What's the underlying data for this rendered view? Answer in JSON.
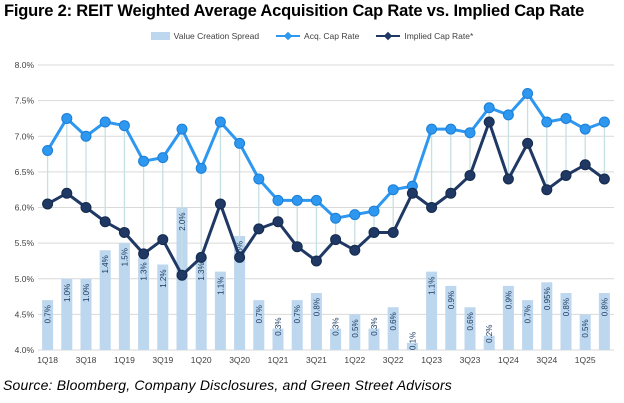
{
  "figure": {
    "title": "Figure 2: REIT Weighted Average Acquisition Cap Rate vs. Implied Cap Rate",
    "source": "Source: Bloomberg, Company Disclosures, and Green Street Advisors"
  },
  "colors": {
    "spread_bar": "#BDD7EE",
    "acq_line": "#2E97F0",
    "acq_marker_edge": "#1B7FD6",
    "implied_line": "#1F3864",
    "implied_marker_edge": "#152B4E",
    "connector": "#C7E0E2",
    "gridline": "#D9D9D9",
    "axis_text": "#404040",
    "bar_label": "#17375E"
  },
  "legend": [
    {
      "label": "Value Creation Spread",
      "type": "bar",
      "color_key": "spread_bar"
    },
    {
      "label": "Acq. Cap Rate",
      "type": "line",
      "color_key": "acq_line"
    },
    {
      "label": "Implied Cap Rate*",
      "type": "line",
      "color_key": "implied_line"
    }
  ],
  "chart_data": {
    "type": "combo-bar-line",
    "title": "Figure 2: REIT Weighted Average Acquisition Cap Rate vs. Implied Cap Rate",
    "xlabel": "",
    "ylabel": "",
    "grid": "horizontal",
    "legend_position": "top-center",
    "categories": [
      "1Q18",
      "2Q18",
      "3Q18",
      "4Q18",
      "1Q19",
      "2Q19",
      "3Q19",
      "4Q19",
      "1Q20",
      "2Q20",
      "3Q20",
      "4Q20",
      "1Q21",
      "2Q21",
      "3Q21",
      "4Q21",
      "1Q22",
      "2Q22",
      "3Q22",
      "4Q22",
      "1Q23",
      "2Q23",
      "3Q23",
      "4Q23",
      "1Q24",
      "2Q24",
      "3Q24",
      "4Q24",
      "1Q25",
      "2Q25"
    ],
    "x_tick_labels": [
      "1Q18",
      "3Q18",
      "1Q19",
      "3Q19",
      "1Q20",
      "3Q20",
      "1Q21",
      "3Q21",
      "1Q22",
      "3Q22",
      "1Q23",
      "3Q23",
      "1Q24",
      "3Q24",
      "1Q25"
    ],
    "x_tick_every": 2,
    "y_axis": {
      "min": 4.0,
      "max": 8.0,
      "step": 0.5,
      "tick_labels": [
        "8.0%",
        "7.5%",
        "7.0%",
        "6.5%",
        "6.0%",
        "5.5%",
        "5.0%",
        "4.5%",
        "4.0%"
      ]
    },
    "series": [
      {
        "name": "Value Creation Spread",
        "type": "bar",
        "baseline": 4.0,
        "values": [
          0.7,
          1.0,
          1.0,
          1.4,
          1.5,
          1.3,
          1.2,
          2.0,
          1.3,
          1.1,
          1.6,
          0.7,
          0.3,
          0.7,
          0.8,
          0.3,
          0.5,
          0.3,
          0.6,
          0.1,
          1.1,
          0.9,
          0.6,
          0.2,
          0.9,
          0.7,
          0.95,
          0.8,
          0.5,
          0.8
        ],
        "labels": [
          "0.7%",
          "1.0%",
          "1.0%",
          "1.4%",
          "1.5%",
          "1.3%",
          "1.2%",
          "2.0%",
          "1.3%",
          "1.1%",
          "1.6%",
          "0.7%",
          "0.3%",
          "0.7%",
          "0.8%",
          "0.3%",
          "0.5%",
          "0.3%",
          "0.6%",
          "0.1%",
          "1.1%",
          "0.9%",
          "0.6%",
          "0.2%",
          "0.9%",
          "0.7%",
          "0.95%",
          "0.8%",
          "0.5%",
          "0.8%"
        ]
      },
      {
        "name": "Acq. Cap Rate",
        "type": "line",
        "values": [
          6.8,
          7.25,
          7.0,
          7.2,
          7.15,
          6.65,
          6.7,
          7.1,
          6.55,
          7.2,
          6.9,
          6.4,
          6.1,
          6.1,
          6.1,
          5.85,
          5.9,
          5.95,
          6.25,
          6.3,
          7.1,
          7.1,
          7.05,
          7.4,
          7.3,
          7.6,
          7.2,
          7.25,
          7.1,
          7.2
        ]
      },
      {
        "name": "Implied Cap Rate*",
        "type": "line",
        "values": [
          6.05,
          6.2,
          6.0,
          5.8,
          5.65,
          5.35,
          5.55,
          5.05,
          5.3,
          6.05,
          5.3,
          5.7,
          5.8,
          5.45,
          5.25,
          5.55,
          5.4,
          5.65,
          5.65,
          6.2,
          6.0,
          6.2,
          6.45,
          7.2,
          6.4,
          6.9,
          6.25,
          6.45,
          6.6,
          6.4
        ]
      }
    ],
    "connectors": true
  }
}
